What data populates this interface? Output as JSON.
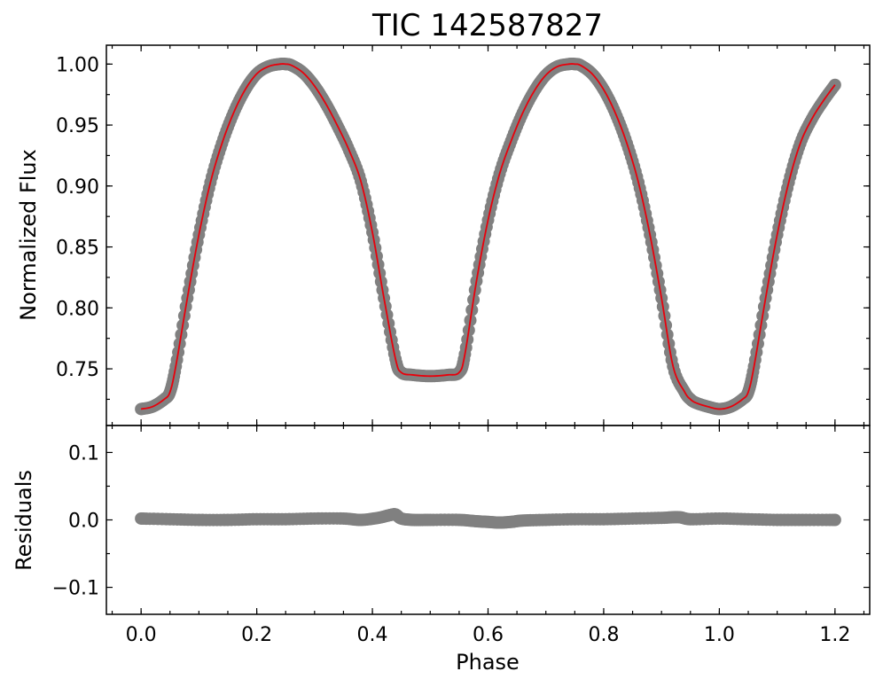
{
  "chart_data": [
    {
      "type": "scatter",
      "title": "TIC 142587827",
      "xlabel": "",
      "ylabel": "Normalized Flux",
      "xlim": [
        -0.06,
        1.26
      ],
      "ylim": [
        0.7035,
        1.0155
      ],
      "yticks": [
        0.75,
        0.8,
        0.85,
        0.9,
        0.95,
        1.0
      ],
      "ytick_labels": [
        "0.75",
        "0.80",
        "0.85",
        "0.90",
        "0.95",
        "1.00"
      ],
      "grid": false,
      "series": [
        {
          "kind": "observed",
          "color": "#808080",
          "x": [
            0.0,
            0.02,
            0.04,
            0.05,
            0.06,
            0.08,
            0.1,
            0.12,
            0.14,
            0.16,
            0.18,
            0.2,
            0.22,
            0.24,
            0.25,
            0.26,
            0.28,
            0.3,
            0.32,
            0.34,
            0.36,
            0.38,
            0.4,
            0.42,
            0.44,
            0.45,
            0.47,
            0.5,
            0.53,
            0.55,
            0.56,
            0.58,
            0.6,
            0.62,
            0.64,
            0.66,
            0.68,
            0.7,
            0.72,
            0.74,
            0.75,
            0.76,
            0.78,
            0.8,
            0.82,
            0.84,
            0.86,
            0.88,
            0.9,
            0.92,
            0.94,
            0.95,
            0.96,
            0.98,
            1.0,
            1.02,
            1.04,
            1.05,
            1.06,
            1.08,
            1.1,
            1.12,
            1.14,
            1.16,
            1.18,
            1.2
          ],
          "y": [
            0.717,
            0.719,
            0.725,
            0.731,
            0.752,
            0.808,
            0.86,
            0.903,
            0.935,
            0.96,
            0.979,
            0.992,
            0.998,
            1.0,
            1.0,
            0.999,
            0.993,
            0.982,
            0.967,
            0.949,
            0.929,
            0.904,
            0.862,
            0.808,
            0.758,
            0.747,
            0.745,
            0.744,
            0.745,
            0.747,
            0.762,
            0.822,
            0.872,
            0.91,
            0.937,
            0.96,
            0.978,
            0.991,
            0.998,
            1.0,
            1.0,
            0.999,
            0.992,
            0.979,
            0.96,
            0.935,
            0.903,
            0.86,
            0.808,
            0.752,
            0.731,
            0.725,
            0.722,
            0.719,
            0.717,
            0.719,
            0.725,
            0.731,
            0.752,
            0.808,
            0.86,
            0.903,
            0.935,
            0.955,
            0.97,
            0.983
          ]
        },
        {
          "kind": "model",
          "color": "#e8000b"
        }
      ]
    },
    {
      "type": "scatter",
      "title": "",
      "xlabel": "Phase",
      "ylabel": "Residuals",
      "xlim": [
        -0.06,
        1.26
      ],
      "ylim": [
        -0.14,
        0.14
      ],
      "xticks": [
        0.0,
        0.2,
        0.4,
        0.6,
        0.8,
        1.0,
        1.2
      ],
      "xtick_labels": [
        "0.0",
        "0.2",
        "0.4",
        "0.6",
        "0.8",
        "1.0",
        "1.2"
      ],
      "yticks": [
        -0.1,
        0.0,
        0.1
      ],
      "ytick_labels": [
        "−0.1",
        "0.0",
        "0.1"
      ],
      "grid": false,
      "series": [
        {
          "kind": "residual",
          "color": "#808080",
          "x": [
            0.0,
            0.05,
            0.1,
            0.15,
            0.2,
            0.25,
            0.3,
            0.35,
            0.38,
            0.41,
            0.43,
            0.44,
            0.45,
            0.47,
            0.5,
            0.55,
            0.58,
            0.6,
            0.62,
            0.64,
            0.66,
            0.7,
            0.75,
            0.8,
            0.85,
            0.9,
            0.93,
            0.95,
            1.0,
            1.05,
            1.1,
            1.15,
            1.2
          ],
          "y": [
            0.002,
            0.001,
            0.0,
            0.0,
            0.001,
            0.001,
            0.002,
            0.002,
            0.0,
            0.003,
            0.007,
            0.008,
            0.002,
            0.0,
            0.0,
            0.0,
            -0.002,
            -0.003,
            -0.004,
            -0.003,
            -0.001,
            0.0,
            0.001,
            0.001,
            0.002,
            0.003,
            0.004,
            0.001,
            0.002,
            0.001,
            0.0,
            0.0,
            0.0
          ]
        }
      ]
    }
  ]
}
